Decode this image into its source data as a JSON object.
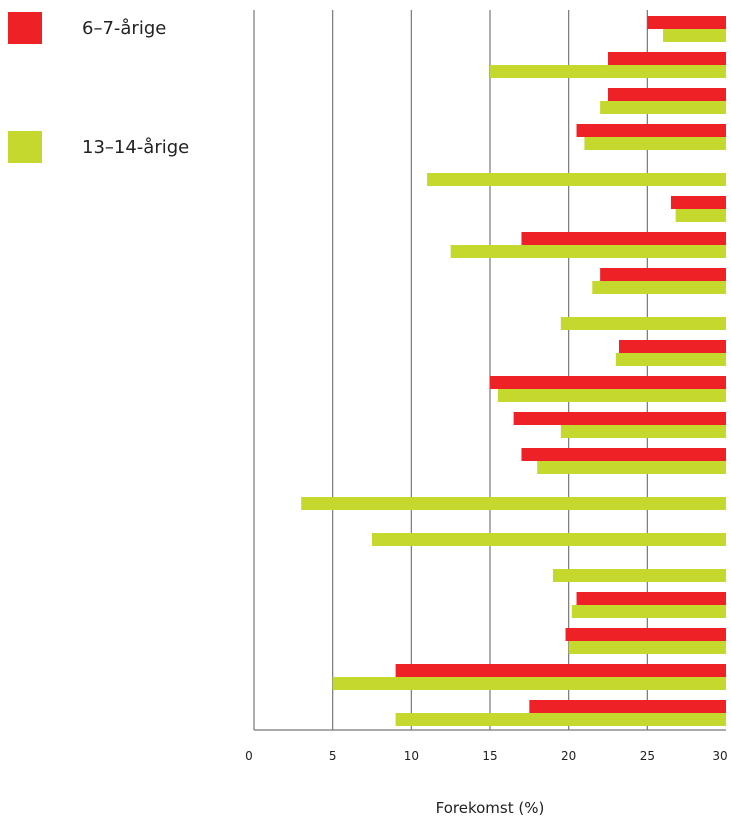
{
  "colors": {
    "series_a": "#ee2226",
    "series_b": "#c4d82d",
    "grid": "#777777"
  },
  "legend": {
    "items": [
      {
        "label": "6–7-årige",
        "color": "#ee2226"
      },
      {
        "label": "13–14-årige",
        "color": "#c4d82d"
      }
    ]
  },
  "chart_data": {
    "type": "bar",
    "orientation": "horizontal",
    "xlabel": "Forekomst (%)",
    "xlim": [
      0,
      30
    ],
    "ticks": [
      "0",
      "5",
      "10",
      "15",
      "20",
      "25",
      "30"
    ],
    "grid": true,
    "legend_position": "top-left",
    "category_labels_visible": false,
    "categories": [
      "1",
      "2",
      "3",
      "4",
      "5",
      "6",
      "7",
      "8",
      "9",
      "10",
      "11",
      "12",
      "13",
      "14",
      "15",
      "16",
      "17",
      "18",
      "19",
      "20"
    ],
    "series": [
      {
        "name": "6–7-årige",
        "values": [
          5,
          7.5,
          7.5,
          9.5,
          null,
          3.5,
          13,
          8,
          null,
          6.8,
          15,
          13.5,
          13,
          null,
          null,
          null,
          9.5,
          10.2,
          21,
          12.5
        ]
      },
      {
        "name": "13–14-årige",
        "values": [
          4,
          15,
          8,
          9,
          19,
          3.2,
          17.5,
          8.5,
          10.5,
          7,
          14.5,
          10.5,
          12,
          27,
          22.5,
          11,
          9.8,
          10,
          25,
          21
        ]
      }
    ]
  }
}
